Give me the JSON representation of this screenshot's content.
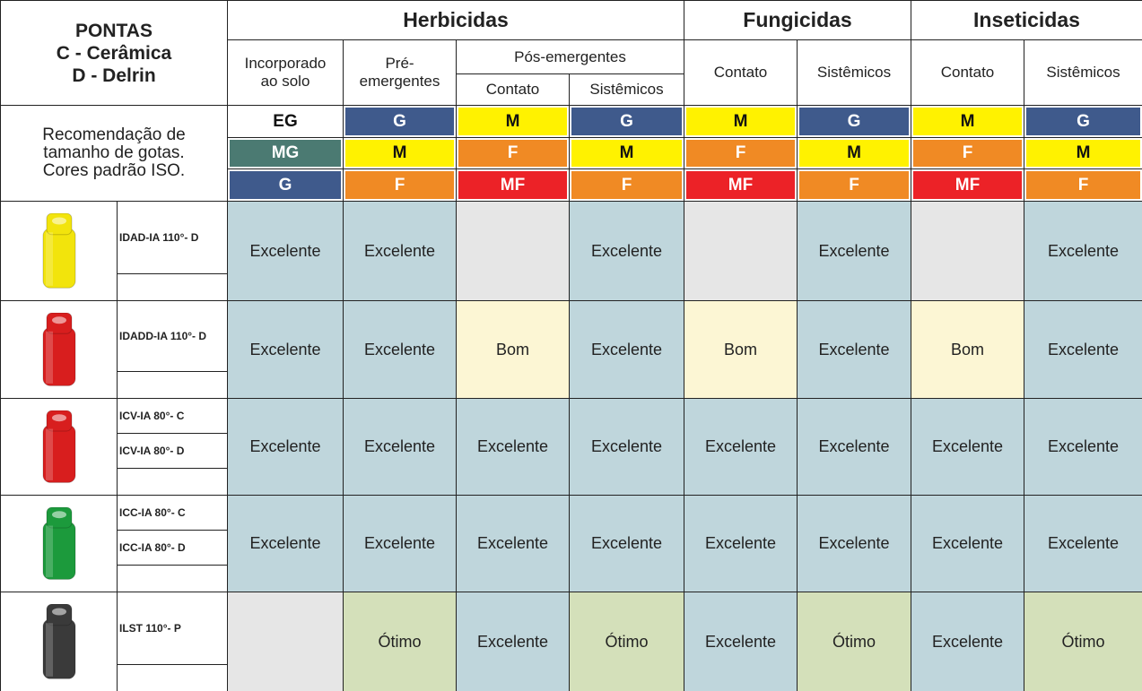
{
  "header": {
    "title": "PONTAS",
    "lines": [
      "C - Cerâmica",
      "D - Delrin"
    ]
  },
  "groups": [
    {
      "label": "Herbicidas"
    },
    {
      "label": "Fungicidas"
    },
    {
      "label": "Inseticidas"
    }
  ],
  "subgroup": "Pós-emergentes",
  "columns": [
    "Incorporado\nao solo",
    "Pré-\nemergentes",
    "Contato",
    "Sistêmicos",
    "Contato",
    "Sistêmicos",
    "Contato",
    "Sistêmicos"
  ],
  "droplet_note": "Recomendação de\ntamanho de gotas.\nCores padrão ISO.",
  "droplets": [
    [
      "EG",
      "G",
      "M",
      "G",
      "M",
      "G",
      "M",
      "G"
    ],
    [
      "MG",
      "M",
      "F",
      "M",
      "F",
      "M",
      "F",
      "M"
    ],
    [
      "G",
      "F",
      "MF",
      "F",
      "MF",
      "F",
      "MF",
      "F"
    ]
  ],
  "droplet_colors": {
    "EG": "#ffffff",
    "G": "#3f5a8c",
    "MG": "#4b7a72",
    "M": "#fff200",
    "F": "#f08a24",
    "MF": "#ec2227"
  },
  "rating_colors": {
    "Excelente": "#bfd6dc",
    "Bom": "#fcf6d4",
    "Ótimo": "#d4e0ba"
  },
  "products": [
    {
      "names": [
        "IDAD-IA 110°- D"
      ],
      "nozzle_color": "#f2e40c",
      "ratings": [
        "Excelente",
        "Excelente",
        null,
        "Excelente",
        null,
        "Excelente",
        null,
        "Excelente"
      ]
    },
    {
      "names": [
        "IDADD-IA 110°- D"
      ],
      "nozzle_color": "#d81e1e",
      "ratings": [
        "Excelente",
        "Excelente",
        "Bom",
        "Excelente",
        "Bom",
        "Excelente",
        "Bom",
        "Excelente"
      ]
    },
    {
      "names": [
        "ICV-IA 80°- C",
        "ICV-IA 80°- D"
      ],
      "nozzle_color": "#d81e1e",
      "ratings": [
        "Excelente",
        "Excelente",
        "Excelente",
        "Excelente",
        "Excelente",
        "Excelente",
        "Excelente",
        "Excelente"
      ]
    },
    {
      "names": [
        "ICC-IA 80°- C",
        "ICC-IA 80°- D"
      ],
      "nozzle_color": "#1c9a3c",
      "ratings": [
        "Excelente",
        "Excelente",
        "Excelente",
        "Excelente",
        "Excelente",
        "Excelente",
        "Excelente",
        "Excelente"
      ]
    },
    {
      "names": [
        "ILST 110°- P"
      ],
      "nozzle_color": "#3a3a3a",
      "ratings": [
        null,
        "Ótimo",
        "Excelente",
        "Ótimo",
        "Excelente",
        "Ótimo",
        "Excelente",
        "Ótimo"
      ]
    }
  ]
}
